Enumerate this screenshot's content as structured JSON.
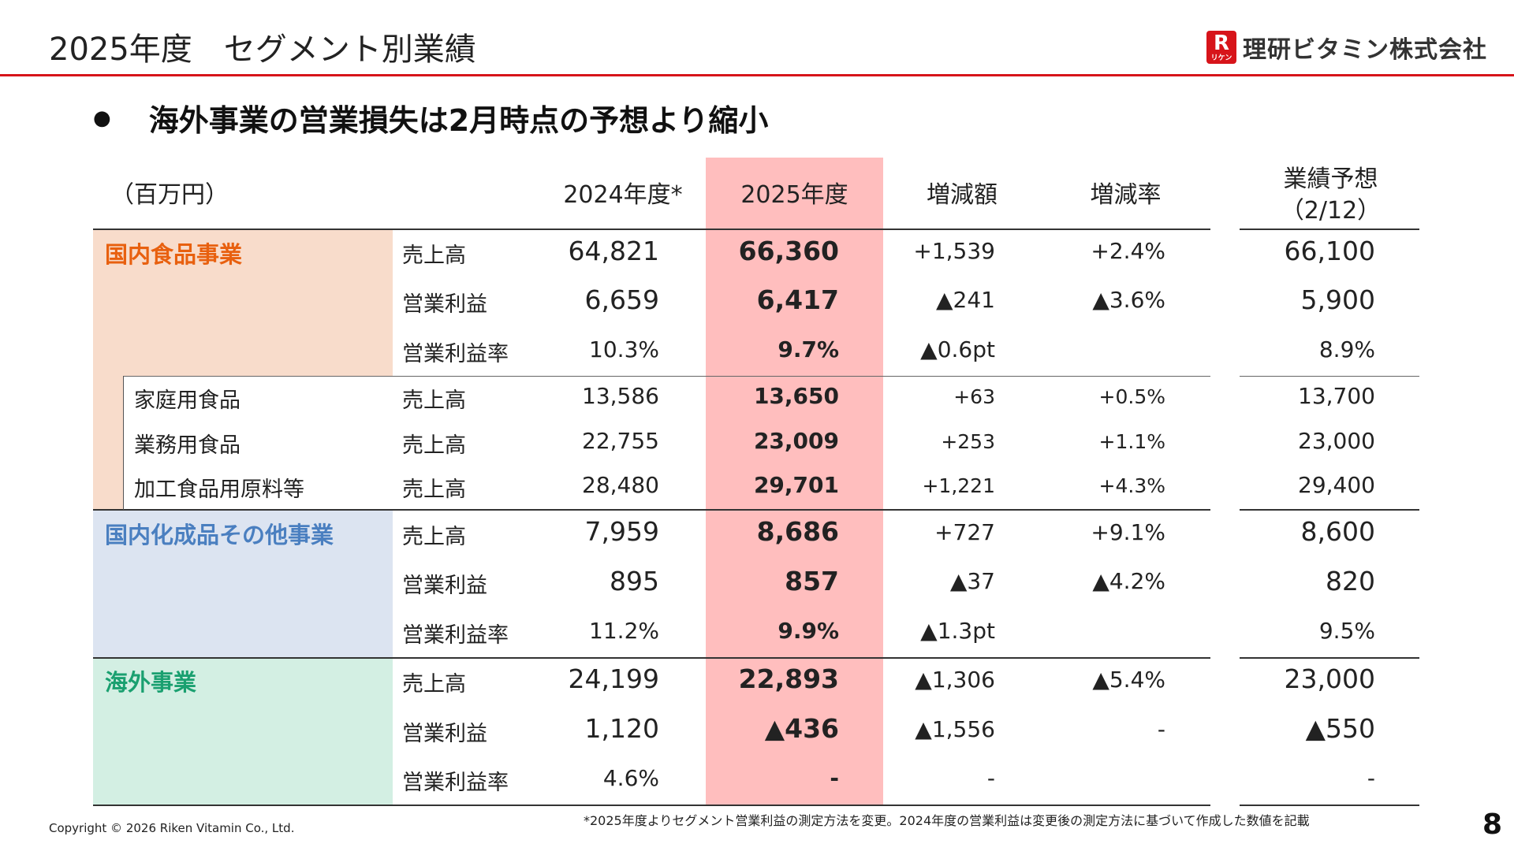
{
  "header": {
    "title": "2025年度　セグメント別業績",
    "logo_mark": "R",
    "logo_sub": "リケン",
    "logo_text": "理研ビタミン株式会社"
  },
  "bullet": "海外事業の営業損失は2月時点の予想より縮小",
  "table": {
    "unit": "（百万円）",
    "col_fy2024": "2024年度*",
    "col_fy2025": "2025年度",
    "col_change": "増減額",
    "col_rate": "増減率",
    "col_forecast_1": "業績予想",
    "col_forecast_2": "（2/12）",
    "segments": {
      "domestic_food": "国内食品事業",
      "domestic_chem": "国内化成品その他事業",
      "overseas": "海外事業"
    },
    "subsegments": {
      "home": "家庭用食品",
      "business": "業務用食品",
      "processing": "加工食品用原料等"
    },
    "rows": [
      {
        "metric": "売上高",
        "fy2024": "64,821",
        "fy2025": "66,360",
        "change": "+1,539",
        "rate": "+2.4%",
        "forecast": "66,100"
      },
      {
        "metric": "営業利益",
        "fy2024": "6,659",
        "fy2025": "6,417",
        "change": "▲241",
        "rate": "▲3.6%",
        "forecast": "5,900"
      },
      {
        "metric": "営業利益率",
        "fy2024": "10.3%",
        "fy2025": "9.7%",
        "change": "▲0.6pt",
        "rate": "",
        "forecast": "8.9%"
      },
      {
        "metric": "売上高",
        "fy2024": "13,586",
        "fy2025": "13,650",
        "change": "+63",
        "rate": "+0.5%",
        "forecast": "13,700"
      },
      {
        "metric": "売上高",
        "fy2024": "22,755",
        "fy2025": "23,009",
        "change": "+253",
        "rate": "+1.1%",
        "forecast": "23,000"
      },
      {
        "metric": "売上高",
        "fy2024": "28,480",
        "fy2025": "29,701",
        "change": "+1,221",
        "rate": "+4.3%",
        "forecast": "29,400"
      },
      {
        "metric": "売上高",
        "fy2024": "7,959",
        "fy2025": "8,686",
        "change": "+727",
        "rate": "+9.1%",
        "forecast": "8,600"
      },
      {
        "metric": "営業利益",
        "fy2024": "895",
        "fy2025": "857",
        "change": "▲37",
        "rate": "▲4.2%",
        "forecast": "820"
      },
      {
        "metric": "営業利益率",
        "fy2024": "11.2%",
        "fy2025": "9.9%",
        "change": "▲1.3pt",
        "rate": "",
        "forecast": "9.5%"
      },
      {
        "metric": "売上高",
        "fy2024": "24,199",
        "fy2025": "22,893",
        "change": "▲1,306",
        "rate": "▲5.4%",
        "forecast": "23,000"
      },
      {
        "metric": "営業利益",
        "fy2024": "1,120",
        "fy2025": "▲436",
        "change": "▲1,556",
        "rate": "-",
        "forecast": "▲550"
      },
      {
        "metric": "営業利益率",
        "fy2024": "4.6%",
        "fy2025": "-",
        "change": "-",
        "rate": "",
        "forecast": "-"
      }
    ]
  },
  "footnote": "*2025年度よりセグメント営業利益の測定方法を変更。2024年度の営業利益は変更後の測定方法に基づいて作成した数値を記載",
  "copyright": "Copyright © 2026 Riken Vitamin Co., Ltd.",
  "page_number": "8",
  "colors": {
    "accent_red": "#d7141a",
    "highlight_column": "#ffbebe",
    "domestic_food_bg": "#f8dccb",
    "domestic_food_text": "#e8600f",
    "domestic_chem_bg": "#dce4f1",
    "domestic_chem_text": "#4a7fc0",
    "overseas_bg": "#d3efe3",
    "overseas_text": "#1aa070"
  }
}
